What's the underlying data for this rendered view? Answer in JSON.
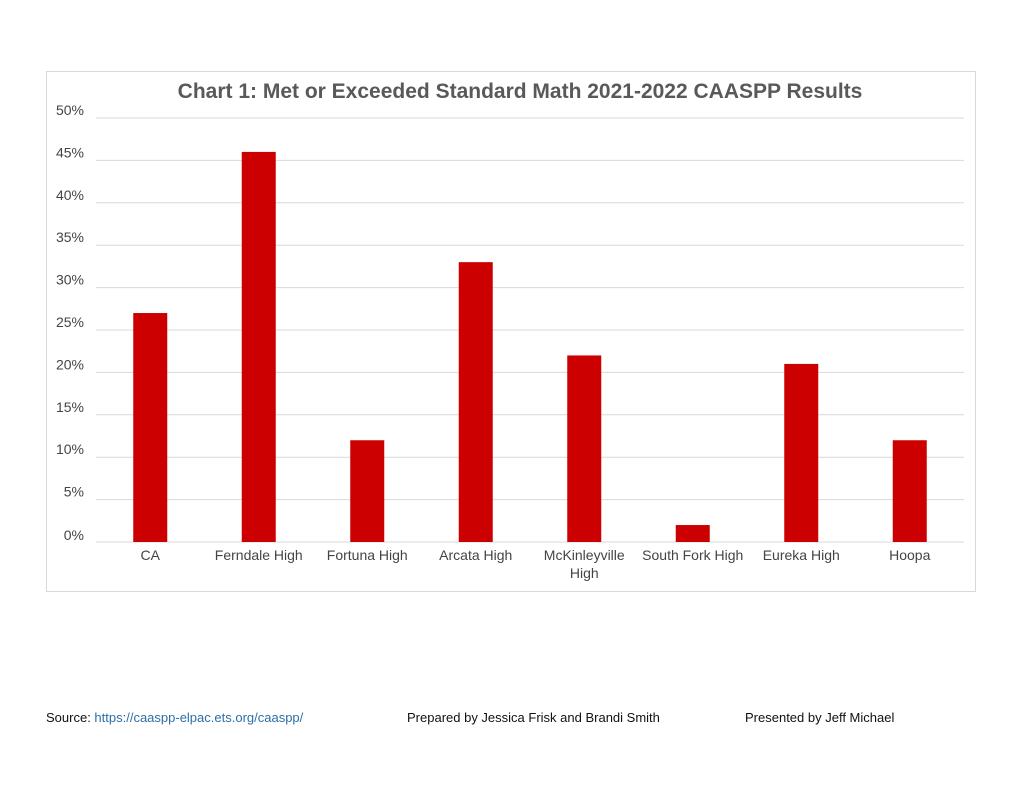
{
  "chart_data": {
    "type": "bar",
    "title": "Chart 1: Met or Exceeded Standard Math 2021-2022 CAASPP Results",
    "xlabel": "",
    "ylabel": "",
    "categories": [
      "CA",
      "Ferndale High",
      "Fortuna High",
      "Arcata High",
      "McKinleyville High",
      "South Fork High",
      "Eureka High",
      "Hoopa"
    ],
    "category_label_lines": [
      [
        "CA"
      ],
      [
        "Ferndale High"
      ],
      [
        "Fortuna High"
      ],
      [
        "Arcata High"
      ],
      [
        "McKinleyville",
        "High"
      ],
      [
        "South Fork High"
      ],
      [
        "Eureka High"
      ],
      [
        "Hoopa"
      ]
    ],
    "values": [
      0.27,
      0.46,
      0.12,
      0.33,
      0.22,
      0.02,
      0.21,
      0.12
    ],
    "ylim": [
      0,
      0.5
    ],
    "yticks": [
      0,
      0.05,
      0.1,
      0.15,
      0.2,
      0.25,
      0.3,
      0.35,
      0.4,
      0.45,
      0.5
    ],
    "ytick_labels": [
      "0%",
      "5%",
      "10%",
      "15%",
      "20%",
      "25%",
      "30%",
      "35%",
      "40%",
      "45%",
      "50%"
    ],
    "grid": true,
    "legend": "none",
    "bar_color": "#cc0000",
    "grid_color": "#d9d9d9"
  },
  "footer": {
    "source_label": "Source: ",
    "source_link": "https://caaspp-elpac.ets.org/caaspp/",
    "prepared_by": "Prepared by Jessica Frisk and Brandi Smith",
    "presented_by": "Presented by Jeff Michael"
  }
}
